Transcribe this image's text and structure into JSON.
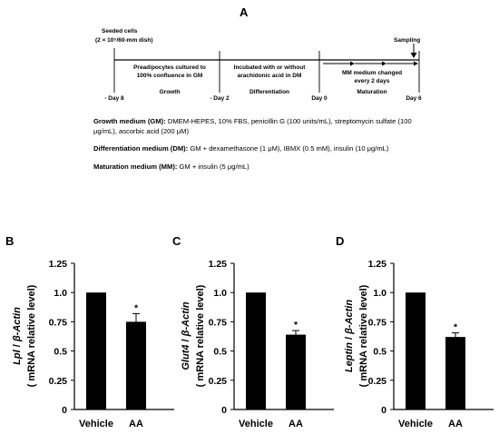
{
  "panel_a": {
    "letter": "A",
    "seeded_line1": "Seeded cells",
    "seeded_line2": "(2 × 10⁵/60-mm dish)",
    "sampling": "Sampling",
    "stage1_line1": "Preadipocytes cultured to",
    "stage1_line2": "100% confluence in GM",
    "stage2_line1": "Incubated with or without",
    "stage2_line2": "arachidonic acid in DM",
    "stage3_line1": "MM medium changed",
    "stage3_line2": "every 2 days",
    "day_labels": [
      "- Day 8",
      "- Day 2",
      "Day 0",
      "Day 6"
    ],
    "phases": [
      "Growth",
      "Differentiation",
      "Maturation"
    ],
    "growth_label": "Growth medium (GM):",
    "growth_text1": " DMEM-HEPES, 10% FBS, penicillin G (100 units/mL), streptomycin   sulfate (100",
    "growth_text2": "μg/mL), ascorbic acid (200 μM)",
    "diff_label": "Differentiation medium (DM):",
    "diff_text": " GM + dexamethasone (1 μM), IBMX (0.5 mM), insulin (10 μg/mL)",
    "mat_label": "Maturation medium (MM):",
    "mat_text": " GM + insulin (5 μg/mL)"
  },
  "chart_data": [
    {
      "type": "bar",
      "panel": "B",
      "gene": "Lpl",
      "ylabel_rest": " / β-Actin",
      "ylabel2": "( mRNA relative level)",
      "categories": [
        "Vehicle",
        "AA"
      ],
      "values": [
        1.0,
        0.75
      ],
      "errors": [
        0,
        0.07
      ],
      "significance": [
        "",
        "*"
      ],
      "yticks": [
        "0",
        "0.25",
        "0.5",
        "0.75",
        "1.0",
        "1.25"
      ],
      "ylim": [
        0,
        1.25
      ]
    },
    {
      "type": "bar",
      "panel": "C",
      "gene": "Glut4",
      "ylabel_rest": " / β-Actin",
      "ylabel2": "( mRNA relative level)",
      "categories": [
        "Vehicle",
        "AA"
      ],
      "values": [
        1.0,
        0.64
      ],
      "errors": [
        0,
        0.035
      ],
      "significance": [
        "",
        "*"
      ],
      "yticks": [
        "0",
        "0.25",
        "0.5",
        "0.75",
        "1.0",
        "1.25"
      ],
      "ylim": [
        0,
        1.25
      ]
    },
    {
      "type": "bar",
      "panel": "D",
      "gene": "Leptin",
      "ylabel_rest": " / β-Actin",
      "ylabel2": "( mRNA relative level)",
      "categories": [
        "Vehicle",
        "AA"
      ],
      "values": [
        1.0,
        0.62
      ],
      "errors": [
        0,
        0.035
      ],
      "significance": [
        "",
        "*"
      ],
      "yticks": [
        "0",
        "0.25",
        "0.5",
        "0.75",
        "1.0",
        "1.25"
      ],
      "ylim": [
        0,
        1.25
      ]
    }
  ]
}
